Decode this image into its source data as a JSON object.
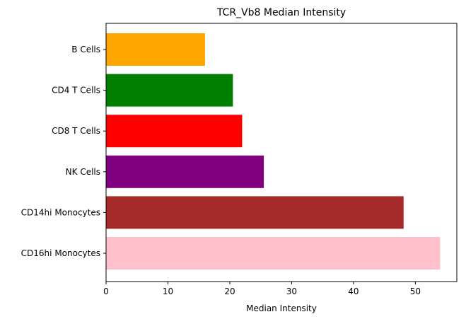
{
  "chart_data": {
    "type": "bar",
    "orientation": "horizontal",
    "title": "TCR_Vb8 Median Intensity",
    "xlabel": "Median Intensity",
    "ylabel": "",
    "categories": [
      "B Cells",
      "CD4 T Cells",
      "CD8 T Cells",
      "NK Cells",
      "CD14hi Monocytes",
      "CD16hi Monocytes"
    ],
    "values": [
      16,
      20.5,
      22,
      25.5,
      48.1,
      54
    ],
    "colors": [
      "#FFA500",
      "#008000",
      "#FF0000",
      "#800080",
      "#A52A2A",
      "#FFC0CB"
    ],
    "xlim": [
      0,
      56.7
    ],
    "xticks": [
      0,
      10,
      20,
      30,
      40,
      50
    ],
    "grid": false,
    "legend": "none"
  }
}
